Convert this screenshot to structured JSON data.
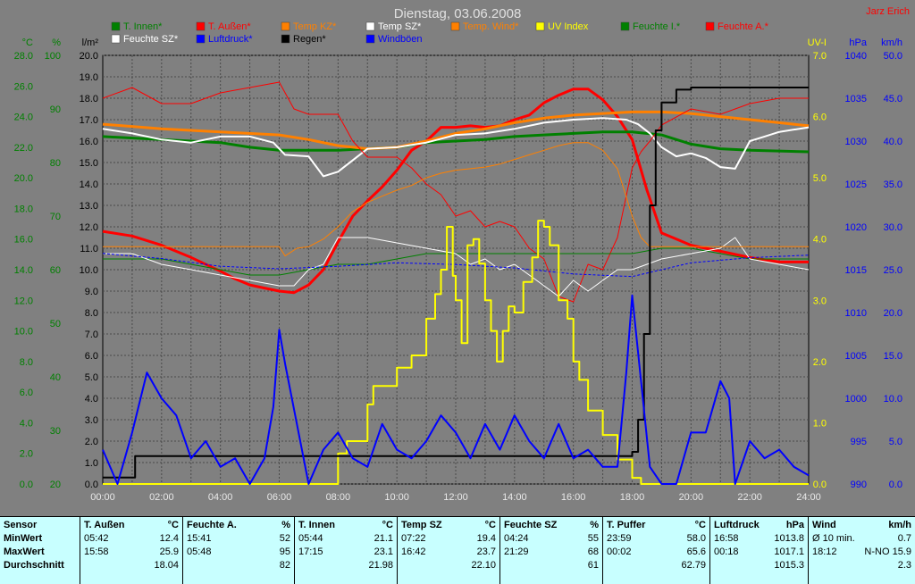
{
  "title": "Dienstag, 03.06.2008",
  "author": "Jarz Erich",
  "chart_data": {
    "type": "line",
    "x_ticks": [
      "00:00",
      "02:00",
      "04:00",
      "06:00",
      "08:00",
      "10:00",
      "12:00",
      "14:00",
      "16:00",
      "18:00",
      "20:00",
      "22:00",
      "24:00"
    ],
    "axes_left": [
      {
        "unit": "°C",
        "color": "#008000",
        "ticks": [
          "0.0",
          "2.0",
          "4.0",
          "6.0",
          "8.0",
          "10.0",
          "12.0",
          "14.0",
          "16.0",
          "18.0",
          "20.0",
          "22.0",
          "24.0",
          "26.0",
          "28.0"
        ]
      },
      {
        "unit": "%",
        "color": "#008000",
        "ticks": [
          "20",
          "30",
          "40",
          "50",
          "60",
          "70",
          "80",
          "90",
          "100"
        ]
      },
      {
        "unit": "l/m²",
        "color": "#000000",
        "ticks": [
          "0.0",
          "1.0",
          "2.0",
          "3.0",
          "4.0",
          "5.0",
          "6.0",
          "7.0",
          "8.0",
          "9.0",
          "10.0",
          "11.0",
          "12.0",
          "13.0",
          "14.0",
          "15.0",
          "16.0",
          "17.0",
          "18.0",
          "19.0",
          "20.0"
        ]
      }
    ],
    "axes_right": [
      {
        "unit": "UV-I",
        "color": "#ffff00",
        "ticks": [
          "0.0",
          "1.0",
          "2.0",
          "3.0",
          "4.0",
          "5.0",
          "6.0",
          "7.0"
        ]
      },
      {
        "unit": "hPa",
        "color": "#0000ff",
        "ticks": [
          "990",
          "995",
          "1000",
          "1005",
          "1010",
          "1015",
          "1020",
          "1025",
          "1030",
          "1035",
          "1040"
        ]
      },
      {
        "unit": "km/h",
        "color": "#0000ff",
        "ticks": [
          "0.0",
          "5.0",
          "10.0",
          "15.0",
          "20.0",
          "25.0",
          "30.0",
          "35.0",
          "40.0",
          "45.0",
          "50.0"
        ]
      }
    ],
    "legend": [
      {
        "name": "T. Innen*",
        "color": "#008000"
      },
      {
        "name": "T. Außen*",
        "color": "#ff0000"
      },
      {
        "name": "Temp KZ*",
        "color": "#ff8000"
      },
      {
        "name": "Temp SZ*",
        "color": "#ffffff"
      },
      {
        "name": "Temp. Wind*",
        "color": "#ff8000"
      },
      {
        "name": "UV Index",
        "color": "#ffff00"
      },
      {
        "name": "Feuchte I.*",
        "color": "#008000"
      },
      {
        "name": "Feuchte A.*",
        "color": "#ff0000"
      },
      {
        "name": "Feuchte SZ*",
        "color": "#ffffff"
      },
      {
        "name": "Luftdruck*",
        "color": "#0000ff"
      },
      {
        "name": "Regen*",
        "color": "#000000"
      },
      {
        "name": "Windböen",
        "color": "#0000ff"
      }
    ],
    "series": [
      {
        "key": "t_aussen",
        "color": "#ff0000",
        "width": 3,
        "scale": "c",
        "x": [
          0,
          1,
          2,
          3,
          4,
          4.5,
          5,
          5.5,
          6,
          6.5,
          7,
          7.5,
          8,
          8.5,
          9,
          9.5,
          10,
          10.5,
          11,
          11.5,
          12,
          12.5,
          13,
          13.5,
          14,
          14.5,
          15,
          15.5,
          16,
          16.5,
          17,
          17.5,
          18,
          18.5,
          19,
          20,
          21,
          22,
          23,
          24
        ],
        "y": [
          16.5,
          16.2,
          15.6,
          14.8,
          13.9,
          13.4,
          13.0,
          12.8,
          12.6,
          12.5,
          13.0,
          14.0,
          15.8,
          17.5,
          18.5,
          19.4,
          20.5,
          21.8,
          22.4,
          23.3,
          23.3,
          23.4,
          23.3,
          23.4,
          23.8,
          24.1,
          24.9,
          25.4,
          25.8,
          25.8,
          25.1,
          24.0,
          22.5,
          19.2,
          16.4,
          15.6,
          15.2,
          14.8,
          14.5,
          14.5
        ]
      },
      {
        "key": "t_innen",
        "color": "#008000",
        "width": 3,
        "scale": "c",
        "x": [
          0,
          2,
          4,
          5,
          6,
          8,
          10,
          11,
          12,
          13,
          14,
          15,
          16,
          17,
          18,
          19,
          20,
          21,
          22,
          24
        ],
        "y": [
          22.7,
          22.5,
          22.3,
          22.0,
          21.8,
          21.8,
          22.0,
          22.3,
          22.4,
          22.5,
          22.7,
          22.8,
          22.9,
          23.0,
          23.0,
          22.8,
          22.2,
          21.9,
          21.8,
          21.7
        ]
      },
      {
        "key": "temp_kz",
        "color": "#ff8000",
        "width": 3,
        "scale": "c",
        "x": [
          0,
          2,
          4,
          6,
          7,
          8,
          9,
          10,
          11,
          12,
          13,
          14,
          15,
          16,
          17,
          18,
          19,
          20,
          21,
          22,
          23,
          24
        ],
        "y": [
          23.5,
          23.2,
          23.0,
          22.8,
          22.5,
          22.1,
          21.9,
          22.0,
          22.4,
          22.9,
          23.2,
          23.6,
          23.9,
          24.1,
          24.2,
          24.3,
          24.3,
          24.2,
          24.0,
          23.8,
          23.6,
          23.4
        ]
      },
      {
        "key": "temp_sz",
        "color": "#ffffff",
        "width": 2,
        "scale": "c",
        "x": [
          0,
          1,
          2,
          3,
          4,
          5,
          5.8,
          6.2,
          7,
          7.5,
          8,
          9,
          10,
          11,
          12,
          13,
          14,
          15,
          16,
          17,
          17.8,
          18.2,
          18.6,
          19,
          19.5,
          20,
          20.5,
          21,
          21.5,
          22,
          22.5,
          23,
          24
        ],
        "y": [
          23.2,
          22.9,
          22.5,
          22.3,
          22.7,
          22.7,
          22.3,
          21.5,
          21.4,
          20.1,
          20.4,
          21.9,
          22.0,
          22.3,
          22.8,
          22.9,
          23.2,
          23.6,
          23.8,
          23.9,
          23.8,
          23.5,
          22.9,
          22.0,
          21.4,
          21.6,
          21.3,
          20.7,
          20.6,
          22.4,
          22.7,
          23.0,
          23.3
        ]
      },
      {
        "key": "feuchte_a",
        "color": "#ff0000",
        "width": 1,
        "scale": "p",
        "x": [
          0,
          1,
          2,
          3,
          4,
          5,
          6,
          6.5,
          7,
          8,
          8.5,
          9,
          9.5,
          10,
          10.5,
          11,
          11.5,
          12,
          12.5,
          13,
          13.5,
          14,
          14.5,
          15,
          15.5,
          16,
          16.5,
          17,
          17.5,
          18,
          18.3,
          18.6,
          19,
          20,
          21,
          22,
          23,
          24
        ],
        "y": [
          92,
          94,
          91,
          91,
          93,
          94,
          95,
          90,
          89,
          89,
          84,
          81,
          81,
          81,
          79,
          76,
          74,
          70,
          71,
          68,
          69,
          68,
          64,
          62,
          55,
          54,
          61,
          60,
          66,
          79,
          82,
          84,
          87,
          90,
          89,
          91,
          92,
          92
        ]
      },
      {
        "key": "feuchte_i",
        "color": "#008000",
        "width": 1,
        "scale": "p",
        "x": [
          0,
          2,
          4,
          5,
          6,
          7,
          8,
          9,
          10,
          11,
          12,
          13,
          14,
          15,
          16,
          17,
          18,
          19,
          20,
          21,
          22,
          23,
          24
        ],
        "y": [
          62,
          62,
          60,
          59,
          59,
          60,
          61,
          61,
          62,
          63,
          63,
          63,
          63,
          63,
          63,
          63,
          63,
          64,
          64,
          63,
          62,
          62,
          62
        ]
      },
      {
        "key": "feuchte_sz",
        "color": "#ffffff",
        "width": 1,
        "scale": "p",
        "x": [
          0,
          1,
          2,
          3,
          4,
          5,
          6,
          6.5,
          7,
          7.5,
          8,
          9,
          10,
          11,
          12,
          12.5,
          13,
          13.5,
          14,
          14.5,
          15,
          15.5,
          16,
          16.5,
          17,
          17.5,
          18,
          18.5,
          19,
          20,
          21,
          21.5,
          22,
          23,
          24
        ],
        "y": [
          63,
          63,
          61,
          60,
          59,
          58,
          57,
          57,
          60,
          61,
          66,
          66,
          65,
          64,
          63,
          61,
          62,
          60,
          61,
          59,
          57,
          55,
          58,
          56,
          58,
          60,
          60,
          61,
          62,
          63,
          64,
          66,
          62,
          61,
          60
        ]
      },
      {
        "key": "temp_wind",
        "color": "#ff8000",
        "width": 1,
        "scale": "c",
        "x": [
          0,
          2,
          4,
          6,
          6.2,
          6.6,
          7,
          7.5,
          8,
          8.5,
          9,
          9.5,
          10,
          10.5,
          11,
          11.5,
          12,
          12.5,
          13,
          13.5,
          14,
          14.5,
          15,
          15.5,
          16,
          16.5,
          17,
          17.5,
          18,
          18.3,
          18.6,
          19,
          20,
          21,
          22,
          24
        ],
        "y": [
          15.5,
          15.5,
          15.5,
          15.5,
          14.9,
          15.4,
          15.5,
          16.0,
          16.8,
          17.8,
          18.4,
          18.8,
          19.2,
          19.5,
          20.0,
          20.3,
          20.5,
          20.6,
          20.7,
          20.9,
          21.2,
          21.5,
          21.8,
          22.1,
          22.3,
          22.3,
          21.8,
          20.6,
          17.5,
          16.1,
          15.5,
          15.5,
          15.5,
          15.5,
          15.5,
          15.5
        ]
      },
      {
        "key": "luftdruck",
        "color": "#0000ff",
        "width": 1,
        "dash": "3,2",
        "scale": "h",
        "x": [
          0,
          2,
          4,
          6,
          8,
          10,
          12,
          14,
          16,
          18,
          20,
          22,
          24
        ],
        "y": [
          1016.9,
          1016.3,
          1015.4,
          1015.1,
          1015.4,
          1015.8,
          1015.6,
          1015.2,
          1014.5,
          1014.2,
          1015.8,
          1016.4,
          1016.7
        ]
      },
      {
        "key": "uv",
        "color": "#ffff00",
        "width": 2,
        "scale": "u",
        "x": [
          0,
          7.2,
          8,
          8.3,
          9,
          9.2,
          10,
          10.5,
          11,
          11.3,
          11.5,
          11.7,
          11.9,
          12,
          12.2,
          12.4,
          12.6,
          12.8,
          13,
          13.2,
          13.4,
          13.6,
          13.8,
          14,
          14.3,
          14.6,
          14.8,
          15,
          15.2,
          15.5,
          15.8,
          16,
          16.2,
          16.5,
          17,
          17.5,
          18,
          18.3,
          24
        ],
        "y": [
          0,
          0,
          0.5,
          0.7,
          1.3,
          1.6,
          1.9,
          2.1,
          2.7,
          3.1,
          3.5,
          4.2,
          3.4,
          3.0,
          2.3,
          3.9,
          4.0,
          3.6,
          3.0,
          2.5,
          2.0,
          2.5,
          2.9,
          2.8,
          3.3,
          3.7,
          4.3,
          4.2,
          3.9,
          3.0,
          2.7,
          2.0,
          1.7,
          1.2,
          0.8,
          0.4,
          0.1,
          0,
          0
        ]
      },
      {
        "key": "regen",
        "color": "#000000",
        "width": 2,
        "scale": "r",
        "x": [
          0,
          1,
          1.1,
          17.8,
          18.0,
          18.2,
          18.4,
          18.6,
          18.8,
          19,
          19.5,
          20,
          24
        ],
        "y": [
          0.3,
          0.3,
          1.3,
          1.3,
          1.5,
          3.0,
          7.0,
          13.0,
          16.5,
          17.8,
          18.4,
          18.5,
          18.5
        ]
      },
      {
        "key": "windboeen",
        "color": "#0000ff",
        "width": 2,
        "scale": "w",
        "x": [
          0,
          0.5,
          1,
          1.5,
          2,
          2.5,
          3,
          3.5,
          4,
          4.5,
          5,
          5.5,
          5.8,
          6,
          6.2,
          7,
          7.5,
          8,
          8.5,
          9,
          9.5,
          10,
          10.5,
          11,
          11.5,
          12,
          12.5,
          13,
          13.5,
          14,
          14.5,
          15,
          15.5,
          16,
          16.5,
          17,
          17.5,
          17.8,
          18,
          18.3,
          18.6,
          19,
          19.5,
          20,
          20.5,
          21,
          21.3,
          21.5,
          22,
          22.5,
          23,
          23.5,
          24
        ],
        "y": [
          4,
          0,
          6,
          13,
          10,
          8,
          3,
          5,
          2,
          3,
          0,
          3,
          9,
          18,
          14,
          0,
          4,
          6,
          3,
          2,
          7,
          4,
          3,
          5,
          8,
          6,
          3,
          7,
          4,
          8,
          5,
          3,
          7,
          3,
          4,
          2,
          2,
          13,
          22,
          12,
          2,
          0,
          0,
          6,
          6,
          12,
          10,
          0,
          5,
          3,
          4,
          2,
          1
        ]
      }
    ]
  },
  "stats": {
    "row_labels": [
      "Sensor",
      "MinWert",
      "MaxWert",
      "Durchschnitt"
    ],
    "columns": [
      {
        "name": "T. Außen",
        "unit": "°C",
        "min_time": "05:42",
        "min": "12.4",
        "max_time": "15:58",
        "max": "25.9",
        "avg": "18.04"
      },
      {
        "name": "Feuchte A.",
        "unit": "%",
        "min_time": "15:41",
        "min": "52",
        "max_time": "05:48",
        "max": "95",
        "avg": "82"
      },
      {
        "name": "T. Innen",
        "unit": "°C",
        "min_time": "05:44",
        "min": "21.1",
        "max_time": "17:15",
        "max": "23.1",
        "avg": "21.98"
      },
      {
        "name": "Temp SZ",
        "unit": "°C",
        "min_time": "07:22",
        "min": "19.4",
        "max_time": "16:42",
        "max": "23.7",
        "avg": "22.10"
      },
      {
        "name": "Feuchte SZ",
        "unit": "%",
        "min_time": "04:24",
        "min": "55",
        "max_time": "21:29",
        "max": "68",
        "avg": "61"
      },
      {
        "name": "T. Puffer",
        "unit": "°C",
        "min_time": "23:59",
        "min": "58.0",
        "max_time": "00:02",
        "max": "65.6",
        "avg": "62.79"
      },
      {
        "name": "Luftdruck",
        "unit": "hPa",
        "min_time": "16:58",
        "min": "1013.8",
        "max_time": "00:18",
        "max": "1017.1",
        "avg": "1015.3"
      },
      {
        "name": "Wind",
        "unit": "km/h",
        "min_time": "Ø 10 min.",
        "min": "0.7",
        "max_time": "18:12",
        "max": "N-NO 15.9",
        "avg": "2.3"
      }
    ]
  }
}
